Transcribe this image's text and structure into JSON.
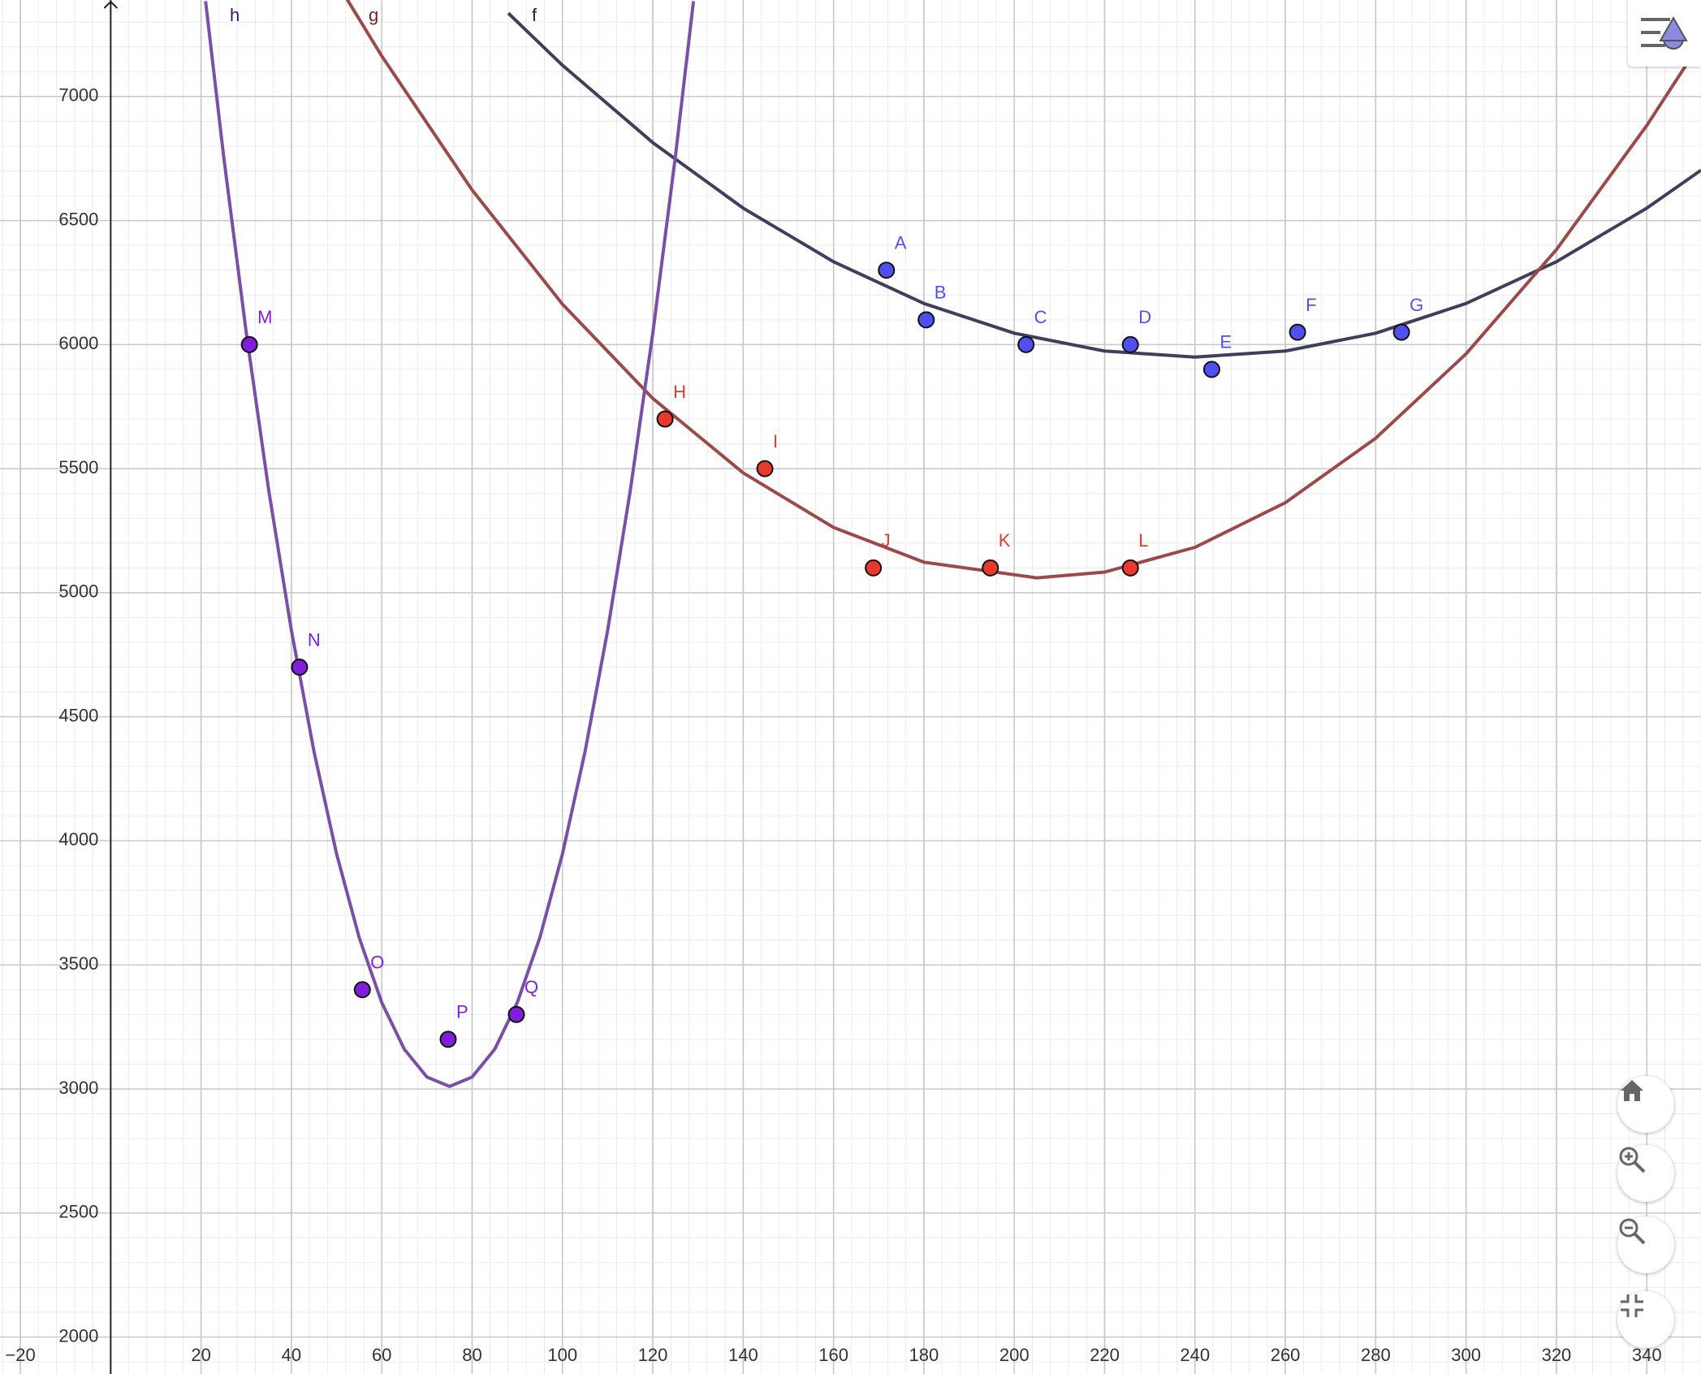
{
  "chart_data": {
    "type": "scatter",
    "xlim": [
      -24.5,
      352
    ],
    "ylim": [
      1851,
      7389
    ],
    "xticks": [
      {
        "value": -20,
        "label": "−20"
      },
      20,
      40,
      60,
      80,
      100,
      120,
      140,
      160,
      180,
      200,
      220,
      240,
      260,
      280,
      300,
      320,
      340
    ],
    "yticks": [
      2000,
      2500,
      3000,
      3500,
      4000,
      4500,
      5000,
      5500,
      6000,
      6500,
      7000
    ],
    "grid": true,
    "series": [
      {
        "name": "f",
        "type": "line",
        "color": "#3d3f5c",
        "x": [
          88,
          100,
          120,
          140,
          160,
          180,
          200,
          220,
          240,
          260,
          280,
          300,
          320,
          340,
          352
        ],
        "values": [
          7336,
          7126,
          6814,
          6550,
          6334,
          6166,
          6046,
          5974,
          5950,
          5974,
          6046,
          6166,
          6334,
          6550,
          6703
        ]
      },
      {
        "name": "g",
        "type": "line",
        "color": "#9b4949",
        "x": [
          52,
          60,
          80,
          100,
          120,
          140,
          160,
          180,
          205,
          220,
          240,
          260,
          280,
          300,
          320,
          340,
          350
        ],
        "values": [
          7401,
          7163,
          6623,
          6163,
          5783,
          5483,
          5263,
          5123,
          5060,
          5083,
          5183,
          5363,
          5623,
          5963,
          6383,
          6883,
          7163
        ]
      },
      {
        "name": "h",
        "type": "line",
        "color": "#7b4fa6",
        "x": [
          21,
          25,
          30,
          35,
          40,
          45,
          50,
          55,
          60,
          65,
          70,
          75,
          80,
          85,
          90,
          95,
          100,
          105,
          110,
          115,
          120,
          125,
          129
        ],
        "values": [
          7384,
          6760,
          6048,
          5410,
          4848,
          4360,
          3948,
          3610,
          3348,
          3160,
          3048,
          3010,
          3048,
          3160,
          3348,
          3610,
          3948,
          4360,
          4848,
          5410,
          6048,
          6760,
          7384
        ]
      },
      {
        "type": "points",
        "color": "#5050f2",
        "labels": [
          "A",
          "B",
          "C",
          "D",
          "E",
          "F",
          "G"
        ],
        "x": [
          171.7,
          180.5,
          202.6,
          225.7,
          243.7,
          262.7,
          285.7
        ],
        "values": [
          6300,
          6100,
          6000,
          6000,
          5900,
          6050,
          6050
        ]
      },
      {
        "type": "points",
        "color": "#e8392c",
        "labels": [
          "H",
          "I",
          "J",
          "K",
          "L"
        ],
        "x": [
          122.7,
          144.8,
          168.8,
          194.7,
          225.7
        ],
        "values": [
          5700,
          5500,
          5100,
          5100,
          5100
        ]
      },
      {
        "type": "points",
        "color": "#7f1fdc",
        "labels": [
          "M",
          "N",
          "O",
          "P",
          "Q"
        ],
        "x": [
          30.7,
          41.8,
          55.7,
          74.7,
          89.8
        ],
        "values": [
          6000,
          4700,
          3400,
          3200,
          3300
        ]
      }
    ]
  }
}
